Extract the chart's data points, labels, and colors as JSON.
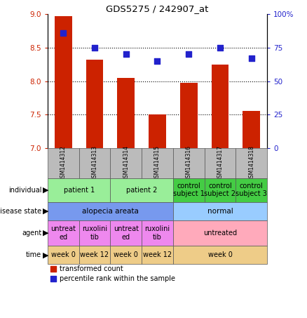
{
  "title": "GDS5275 / 242907_at",
  "samples": [
    "GSM1414312",
    "GSM1414313",
    "GSM1414314",
    "GSM1414315",
    "GSM1414316",
    "GSM1414317",
    "GSM1414318"
  ],
  "transformed_count": [
    8.97,
    8.32,
    8.05,
    7.5,
    7.97,
    8.25,
    7.55
  ],
  "percentile_rank": [
    86,
    75,
    70,
    65,
    70,
    75,
    67
  ],
  "ylim_left": [
    7.0,
    9.0
  ],
  "ylim_right": [
    0,
    100
  ],
  "yticks_left": [
    7.0,
    7.5,
    8.0,
    8.5,
    9.0
  ],
  "yticks_right": [
    0,
    25,
    50,
    75,
    100
  ],
  "bar_color": "#cc2200",
  "dot_color": "#2222cc",
  "bar_width": 0.55,
  "individual_data": [
    {
      "label": "patient 1",
      "cols": [
        0,
        1
      ],
      "color": "#99ee99"
    },
    {
      "label": "patient 2",
      "cols": [
        2,
        3
      ],
      "color": "#99ee99"
    },
    {
      "label": "control\nsubject 1",
      "cols": [
        4
      ],
      "color": "#44cc44"
    },
    {
      "label": "control\nsubject 2",
      "cols": [
        5
      ],
      "color": "#44cc44"
    },
    {
      "label": "control\nsubject 3",
      "cols": [
        6
      ],
      "color": "#44cc44"
    }
  ],
  "disease_data": [
    {
      "label": "alopecia areata",
      "cols": [
        0,
        1,
        2,
        3
      ],
      "color": "#7799ee"
    },
    {
      "label": "normal",
      "cols": [
        4,
        5,
        6
      ],
      "color": "#99ccff"
    }
  ],
  "agent_data": [
    {
      "label": "untreat\ned",
      "cols": [
        0
      ],
      "color": "#ee88ee"
    },
    {
      "label": "ruxolini\ntib",
      "cols": [
        1
      ],
      "color": "#ee88ee"
    },
    {
      "label": "untreat\ned",
      "cols": [
        2
      ],
      "color": "#ee88ee"
    },
    {
      "label": "ruxolini\ntib",
      "cols": [
        3
      ],
      "color": "#ee88ee"
    },
    {
      "label": "untreated",
      "cols": [
        4,
        5,
        6
      ],
      "color": "#ffaabb"
    }
  ],
  "time_data": [
    {
      "label": "week 0",
      "cols": [
        0
      ],
      "color": "#eecc88"
    },
    {
      "label": "week 12",
      "cols": [
        1
      ],
      "color": "#eecc88"
    },
    {
      "label": "week 0",
      "cols": [
        2
      ],
      "color": "#eecc88"
    },
    {
      "label": "week 12",
      "cols": [
        3
      ],
      "color": "#eecc88"
    },
    {
      "label": "week 0",
      "cols": [
        4,
        5,
        6
      ],
      "color": "#eecc88"
    }
  ],
  "sample_label_color": "#bbbbbb",
  "legend_red": "transformed count",
  "legend_blue": "percentile rank within the sample"
}
